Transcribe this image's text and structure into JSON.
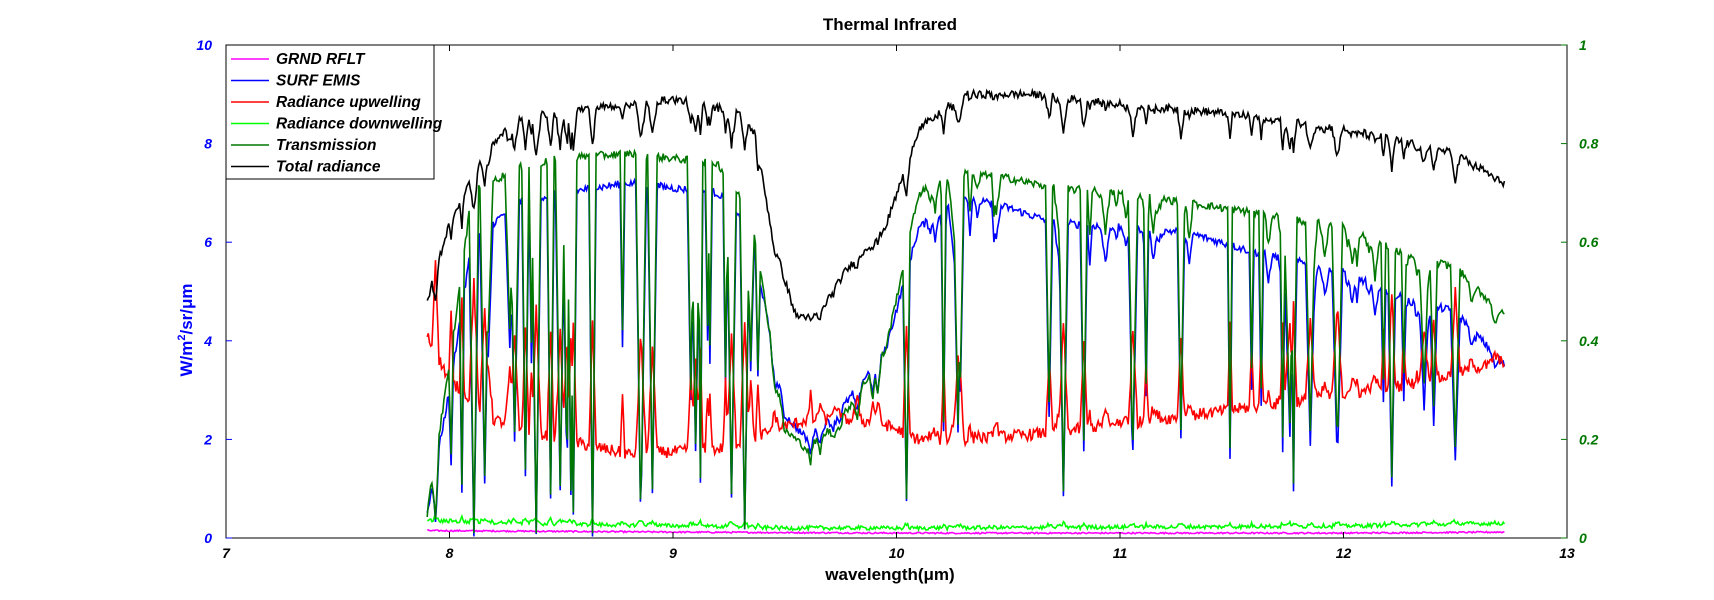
{
  "chart_data": {
    "type": "line",
    "title": "Thermal Infrared",
    "xlabel": "wavelength(μm)",
    "ylabel_left": "W/m²/sr/μm",
    "xlim": [
      7,
      13
    ],
    "ylim_left": [
      0,
      10
    ],
    "ylim_right": [
      0,
      1
    ],
    "x_ticks": [
      "7",
      "8",
      "9",
      "10",
      "11",
      "12",
      "13"
    ],
    "y_ticks_left": [
      "0",
      "2",
      "4",
      "6",
      "8",
      "10"
    ],
    "y_ticks_right": [
      "0",
      "0.2",
      "0.4",
      "0.6",
      "0.8",
      "1"
    ],
    "colors": {
      "left_axis": "#0000ff",
      "right_axis": "#007700"
    },
    "legend_position": "top-left",
    "x_start": 7.9,
    "x_end": 12.72,
    "series": [
      {
        "name": "GRND RFLT",
        "color": "#ff00ff",
        "axis": "left",
        "noise": 0.015,
        "keypoints": [
          [
            7.9,
            0.15
          ],
          [
            9.0,
            0.12
          ],
          [
            10.0,
            0.1
          ],
          [
            11.0,
            0.1
          ],
          [
            12.0,
            0.1
          ],
          [
            12.72,
            0.12
          ]
        ]
      },
      {
        "name": "SURF EMIS",
        "color": "#0000ff",
        "axis": "left",
        "noise": 0.08,
        "keypoints": [
          [
            7.9,
            0.5
          ],
          [
            8.0,
            3.0
          ],
          [
            8.1,
            6.0
          ],
          [
            8.3,
            6.8
          ],
          [
            8.5,
            7.0
          ],
          [
            8.8,
            7.2
          ],
          [
            9.2,
            7.0
          ],
          [
            9.35,
            6.2
          ],
          [
            9.5,
            2.5
          ],
          [
            9.6,
            2.0
          ],
          [
            9.75,
            2.6
          ],
          [
            9.95,
            3.8
          ],
          [
            10.1,
            6.3
          ],
          [
            10.3,
            6.9
          ],
          [
            10.5,
            6.7
          ],
          [
            10.7,
            6.4
          ],
          [
            11.0,
            6.3
          ],
          [
            11.3,
            6.2
          ],
          [
            11.6,
            5.8
          ],
          [
            12.0,
            5.4
          ],
          [
            12.3,
            4.8
          ],
          [
            12.5,
            4.6
          ],
          [
            12.72,
            3.5
          ]
        ]
      },
      {
        "name": "Radiance upwelling",
        "color": "#ff0000",
        "axis": "left",
        "noise": 0.12,
        "keypoints": [
          [
            7.9,
            4.1
          ],
          [
            8.0,
            3.2
          ],
          [
            8.2,
            2.4
          ],
          [
            8.5,
            2.0
          ],
          [
            8.8,
            1.7
          ],
          [
            9.2,
            1.8
          ],
          [
            9.4,
            2.1
          ],
          [
            9.6,
            2.4
          ],
          [
            9.8,
            2.4
          ],
          [
            9.95,
            2.3
          ],
          [
            10.1,
            2.0
          ],
          [
            10.3,
            2.0
          ],
          [
            10.6,
            2.1
          ],
          [
            11.0,
            2.3
          ],
          [
            11.5,
            2.6
          ],
          [
            12.0,
            2.9
          ],
          [
            12.4,
            3.2
          ],
          [
            12.72,
            3.6
          ]
        ]
      },
      {
        "name": "Radiance downwelling",
        "color": "#00ff00",
        "axis": "left",
        "noise": 0.04,
        "keypoints": [
          [
            7.9,
            0.35
          ],
          [
            8.5,
            0.28
          ],
          [
            9.0,
            0.25
          ],
          [
            9.5,
            0.2
          ],
          [
            10.0,
            0.2
          ],
          [
            11.0,
            0.22
          ],
          [
            12.0,
            0.24
          ],
          [
            12.72,
            0.3
          ]
        ]
      },
      {
        "name": "Transmission",
        "color": "#007700",
        "axis": "right",
        "noise": 0.008,
        "keypoints": [
          [
            7.9,
            0.05
          ],
          [
            8.0,
            0.35
          ],
          [
            8.1,
            0.7
          ],
          [
            8.3,
            0.75
          ],
          [
            8.5,
            0.77
          ],
          [
            8.8,
            0.78
          ],
          [
            9.2,
            0.76
          ],
          [
            9.35,
            0.66
          ],
          [
            9.5,
            0.22
          ],
          [
            9.6,
            0.18
          ],
          [
            9.75,
            0.24
          ],
          [
            9.95,
            0.38
          ],
          [
            10.1,
            0.7
          ],
          [
            10.3,
            0.74
          ],
          [
            10.5,
            0.73
          ],
          [
            10.7,
            0.71
          ],
          [
            11.0,
            0.7
          ],
          [
            11.3,
            0.68
          ],
          [
            11.6,
            0.66
          ],
          [
            12.0,
            0.63
          ],
          [
            12.3,
            0.57
          ],
          [
            12.5,
            0.55
          ],
          [
            12.72,
            0.45
          ]
        ]
      },
      {
        "name": "Total radiance",
        "color": "#000000",
        "axis": "left",
        "noise": 0.08,
        "keypoints": [
          [
            7.9,
            4.8
          ],
          [
            8.0,
            6.4
          ],
          [
            8.15,
            7.8
          ],
          [
            8.3,
            8.5
          ],
          [
            8.6,
            8.7
          ],
          [
            9.0,
            8.9
          ],
          [
            9.35,
            8.6
          ],
          [
            9.45,
            6.0
          ],
          [
            9.55,
            4.5
          ],
          [
            9.65,
            4.5
          ],
          [
            9.75,
            5.3
          ],
          [
            9.95,
            6.3
          ],
          [
            10.1,
            8.3
          ],
          [
            10.3,
            9.0
          ],
          [
            10.6,
            9.0
          ],
          [
            11.0,
            8.8
          ],
          [
            11.5,
            8.6
          ],
          [
            12.0,
            8.3
          ],
          [
            12.5,
            7.8
          ],
          [
            12.72,
            7.2
          ]
        ]
      }
    ]
  }
}
